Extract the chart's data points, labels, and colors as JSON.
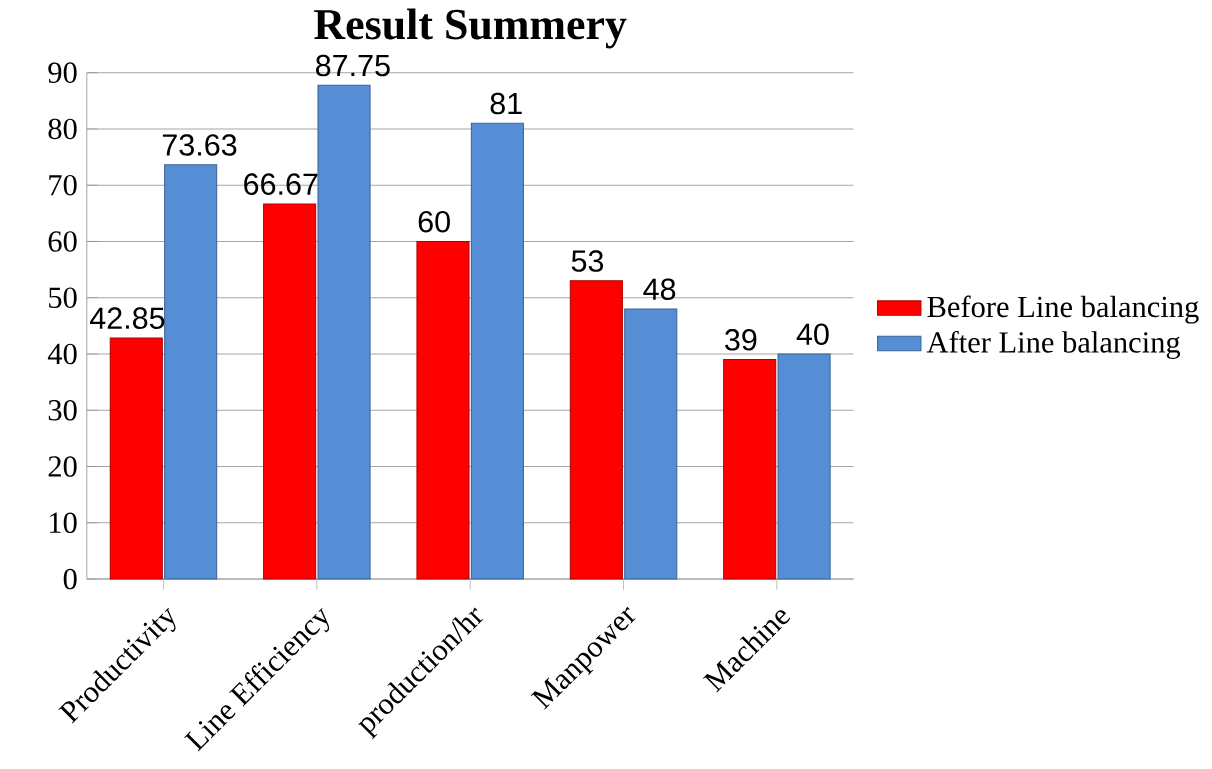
{
  "chart_data": {
    "type": "bar",
    "title": "Result Summery",
    "categories": [
      "Productivity",
      "Line Efficiency",
      "production/hr",
      "Manpower",
      "Machine"
    ],
    "series": [
      {
        "name": "Before Line balancing",
        "color": "#ff0000",
        "values": [
          42.85,
          66.67,
          60,
          53,
          39
        ]
      },
      {
        "name": "After Line balancing",
        "color": "#558ed5",
        "values": [
          73.63,
          87.75,
          81,
          48,
          40
        ]
      }
    ],
    "ylim": [
      0,
      90
    ],
    "yticks": [
      0,
      10,
      20,
      30,
      40,
      50,
      60,
      70,
      80,
      90
    ],
    "grid": "y",
    "legend": "right",
    "data_labels": true
  }
}
